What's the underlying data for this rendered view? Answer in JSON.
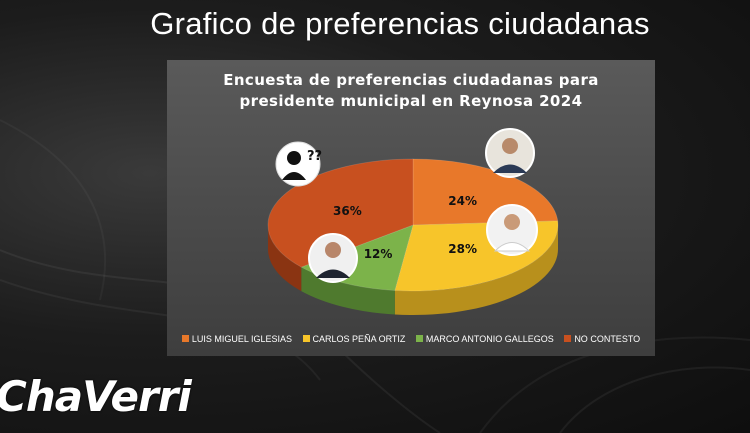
{
  "header": {
    "title": "Grafico de preferencias ciudadanas"
  },
  "logo": {
    "text": "ChaVerri"
  },
  "chart_data": {
    "type": "pie",
    "title_lines": [
      "Encuesta de preferencias ciudadanas  para",
      "presidente municipal en Reynosa 2024"
    ],
    "categories": [
      "LUIS MIGUEL IGLESIAS",
      "CARLOS PEÑA ORTIZ",
      "MARCO ANTONIO GALLEGOS",
      "NO CONTESTO"
    ],
    "values": [
      24,
      28,
      12,
      36
    ],
    "labels": [
      "24%",
      "28%",
      "12%",
      "36%"
    ],
    "colors": [
      "#e8782a",
      "#f7c52a",
      "#7cb34a",
      "#c8501f"
    ],
    "side_colors": [
      "#a9521a",
      "#b8901c",
      "#4f7a2e",
      "#8a3412"
    ],
    "legend_position": "bottom"
  }
}
